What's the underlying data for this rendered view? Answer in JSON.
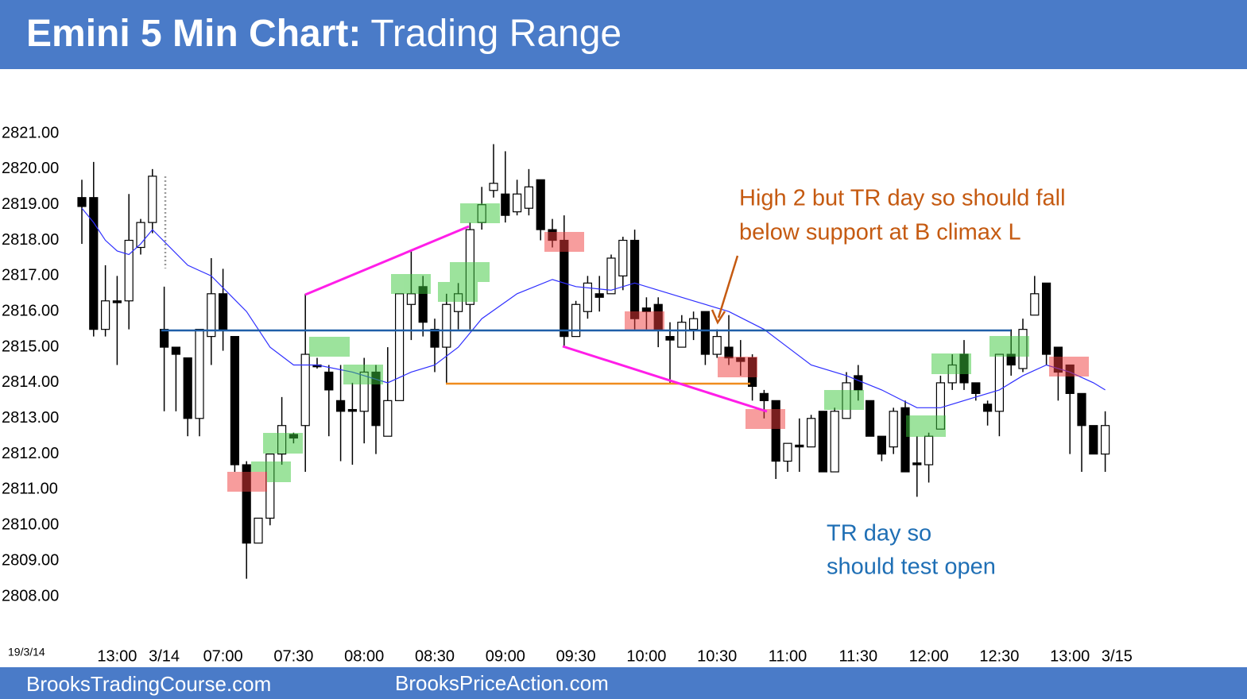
{
  "chart_data": {
    "type": "candlestick",
    "title": "Emini 5 Min Chart:",
    "subtitle": "Trading Range",
    "corner_label": "19/3/14",
    "annotations": [
      [
        "High 2 but TR day so should fall",
        "below support at B climax L"
      ],
      [
        "TR day so",
        "should test open"
      ]
    ],
    "categories": [
      null,
      null,
      null,
      "13:00",
      null,
      null,
      null,
      "3/14",
      null,
      null,
      null,
      null,
      "07:00",
      null,
      null,
      null,
      null,
      null,
      "07:30",
      null,
      null,
      null,
      null,
      null,
      "08:00",
      null,
      null,
      null,
      null,
      null,
      "08:30",
      null,
      null,
      null,
      null,
      null,
      "09:00",
      null,
      null,
      null,
      null,
      null,
      "09:30",
      null,
      null,
      null,
      null,
      null,
      "10:00",
      null,
      null,
      null,
      null,
      null,
      "10:30",
      null,
      null,
      null,
      null,
      null,
      "11:00",
      null,
      null,
      null,
      null,
      null,
      "11:30",
      null,
      null,
      null,
      null,
      null,
      "12:00",
      null,
      null,
      null,
      null,
      null,
      "12:30",
      null,
      null,
      null,
      null,
      null,
      "13:00",
      null,
      null,
      null,
      "3/15"
    ],
    "open": [
      2819.2,
      2819.2,
      2815.5,
      2816.3,
      2816.3,
      2817.8,
      2818.5,
      2815.5,
      2815.0,
      2814.7,
      2813.0,
      2815.3,
      2816.5,
      2815.3,
      2811.7,
      2809.5,
      2810.2,
      2812.0,
      2812.55,
      2812.8,
      2814.5,
      2814.3,
      2813.5,
      2813.25,
      2813.2,
      2814.3,
      2812.5,
      2813.5,
      2816.2,
      2816.7,
      2815.5,
      2815.0,
      2816.0,
      2816.2,
      2818.5,
      2819.4,
      2819.3,
      2818.8,
      2818.9,
      2819.7,
      2818.3,
      2818.0,
      2815.3,
      2816.0,
      2816.5,
      2816.5,
      2817.0,
      2818.0,
      2816.1,
      2816.2,
      2815.3,
      2815.0,
      2815.5,
      2816.0,
      2814.8,
      2815.0,
      2814.7,
      2814.7,
      2813.7,
      2813.5,
      2811.8,
      2812.25,
      2812.2,
      2813.2,
      2811.5,
      2813.0,
      2814.2,
      2813.5,
      2812.5,
      2812.2,
      2813.3,
      2811.75,
      2811.7,
      2812.7,
      2814.0,
      2814.8,
      2814.0,
      2813.4,
      2813.2,
      2814.8,
      2814.4,
      2815.9,
      2816.8,
      2815.0,
      2814.5,
      2813.7,
      2812.8,
      2812.0,
      null
    ],
    "high": [
      2819.7,
      2820.2,
      2817.3,
      2817.0,
      2819.3,
      2818.6,
      2820.0,
      2816.7,
      2815.0,
      2814.7,
      2815.5,
      2817.5,
      2817.2,
      2815.3,
      2811.8,
      2810.2,
      2812.0,
      2813.6,
      2812.6,
      2816.5,
      2814.7,
      2814.5,
      2814.5,
      2814.0,
      2814.7,
      2814.5,
      2815.0,
      2816.5,
      2817.7,
      2817.0,
      2815.8,
      2816.5,
      2816.8,
      2818.5,
      2819.5,
      2820.7,
      2820.5,
      2819.7,
      2820.0,
      2819.7,
      2818.6,
      2818.7,
      2816.3,
      2817.0,
      2817.0,
      2817.6,
      2818.1,
      2818.3,
      2816.4,
      2816.4,
      2815.7,
      2815.9,
      2816.0,
      2816.0,
      2815.5,
      2815.9,
      2815.2,
      2814.8,
      2813.8,
      2813.5,
      2812.3,
      2813.0,
      2813.1,
      2813.2,
      2813.3,
      2814.3,
      2814.5,
      2813.5,
      2812.5,
      2813.3,
      2813.5,
      2812.5,
      2812.6,
      2814.2,
      2814.8,
      2815.2,
      2814.0,
      2813.5,
      2814.8,
      2815.5,
      2815.8,
      2817.0,
      2816.8,
      2815.0,
      2814.5,
      2813.7,
      2812.8,
      2813.2,
      null
    ],
    "low": [
      2817.9,
      2815.3,
      2815.3,
      2814.5,
      2815.5,
      2817.6,
      2818.2,
      2813.2,
      2813.2,
      2812.5,
      2812.5,
      2814.5,
      2814.9,
      2811.5,
      2808.5,
      2809.5,
      2810.0,
      2811.7,
      2812.3,
      2811.5,
      2814.4,
      2812.5,
      2811.8,
      2811.7,
      2812.3,
      2812.0,
      2812.5,
      2813.5,
      2815.2,
      2815.3,
      2814.3,
      2814.0,
      2815.5,
      2815.5,
      2818.3,
      2819.2,
      2818.5,
      2818.7,
      2818.7,
      2818.0,
      2817.8,
      2815.0,
      2815.3,
      2815.8,
      2816.0,
      2816.5,
      2816.6,
      2815.5,
      2815.5,
      2815.0,
      2814.0,
      2815.0,
      2815.2,
      2814.5,
      2814.7,
      2814.5,
      2814.2,
      2813.5,
      2813.0,
      2811.3,
      2811.5,
      2811.5,
      2812.2,
      2811.5,
      2811.5,
      2813.0,
      2813.5,
      2812.5,
      2811.8,
      2812.0,
      2811.5,
      2810.8,
      2811.2,
      2812.7,
      2813.8,
      2813.8,
      2813.5,
      2812.8,
      2812.5,
      2814.2,
      2814.3,
      2815.9,
      2814.5,
      2813.5,
      2812.0,
      2811.5,
      2812.0,
      2811.5,
      null
    ],
    "close": [
      2818.95,
      2815.5,
      2816.3,
      2816.25,
      2818.0,
      2818.5,
      2819.8,
      2815.0,
      2814.8,
      2813.0,
      2815.5,
      2816.5,
      2815.5,
      2811.7,
      2809.5,
      2810.2,
      2812.0,
      2812.8,
      2812.45,
      2814.8,
      2814.45,
      2813.8,
      2813.2,
      2813.2,
      2814.3,
      2812.8,
      2813.5,
      2816.5,
      2816.5,
      2815.7,
      2815.0,
      2816.2,
      2816.5,
      2818.3,
      2819.0,
      2819.6,
      2818.7,
      2819.3,
      2819.5,
      2818.3,
      2818.0,
      2815.3,
      2816.2,
      2816.8,
      2816.4,
      2817.5,
      2818.0,
      2815.8,
      2816.0,
      2815.5,
      2815.2,
      2815.7,
      2815.8,
      2814.8,
      2815.3,
      2814.7,
      2814.6,
      2813.9,
      2813.5,
      2811.8,
      2812.3,
      2812.2,
      2813.0,
      2811.5,
      2813.2,
      2814.0,
      2813.8,
      2812.5,
      2812.0,
      2813.2,
      2811.5,
      2811.7,
      2812.5,
      2814.0,
      2814.5,
      2814.0,
      2813.7,
      2813.2,
      2814.8,
      2814.5,
      2815.5,
      2816.5,
      2814.8,
      2814.3,
      2813.7,
      2812.8,
      2812.0,
      2812.8,
      null
    ],
    "up_color": "#ffffff",
    "down_color": "#000000",
    "moving_average": {
      "color": "#2f2fff",
      "x": [
        0,
        1,
        2,
        3,
        4,
        5,
        6,
        9,
        11,
        14,
        16,
        18,
        20,
        23,
        26,
        28,
        30,
        32,
        34,
        37,
        40,
        42,
        45,
        47,
        49,
        52,
        55,
        58,
        60,
        62,
        65,
        68,
        71,
        73,
        76,
        78,
        80,
        82,
        84,
        86,
        87
      ],
      "values": [
        2818.9,
        2818.5,
        2818.0,
        2817.7,
        2817.6,
        2817.9,
        2818.3,
        2817.3,
        2817.0,
        2816.0,
        2815.0,
        2814.5,
        2814.5,
        2814.3,
        2814.0,
        2814.3,
        2814.5,
        2815.0,
        2815.8,
        2816.5,
        2816.9,
        2816.7,
        2816.6,
        2816.8,
        2816.6,
        2816.3,
        2816.0,
        2815.5,
        2815.0,
        2814.5,
        2814.2,
        2813.8,
        2813.3,
        2813.3,
        2813.6,
        2813.8,
        2814.2,
        2814.5,
        2814.3,
        2814.0,
        2813.8
      ]
    },
    "ylim": [
      2808,
      2821
    ],
    "yticks": [
      {
        "value": 2821,
        "label": "2821.00"
      },
      {
        "value": 2820,
        "label": "2820.00"
      },
      {
        "value": 2819,
        "label": "2819.00"
      },
      {
        "value": 2818,
        "label": "2818.00"
      },
      {
        "value": 2817,
        "label": "2817.00"
      },
      {
        "value": 2816,
        "label": "2816.00"
      },
      {
        "value": 2815,
        "label": "2815.00"
      },
      {
        "value": 2814,
        "label": "2814.00"
      },
      {
        "value": 2813,
        "label": "2813.00"
      },
      {
        "value": 2812,
        "label": "2812.00"
      },
      {
        "value": 2811,
        "label": "2811.00"
      },
      {
        "value": 2810,
        "label": "2810.00"
      },
      {
        "value": 2809,
        "label": "2809.00"
      },
      {
        "value": 2808,
        "label": "2808.00"
      }
    ]
  },
  "footer": [
    "BrooksTradingCourse.com",
    "BrooksPriceAction.com"
  ]
}
